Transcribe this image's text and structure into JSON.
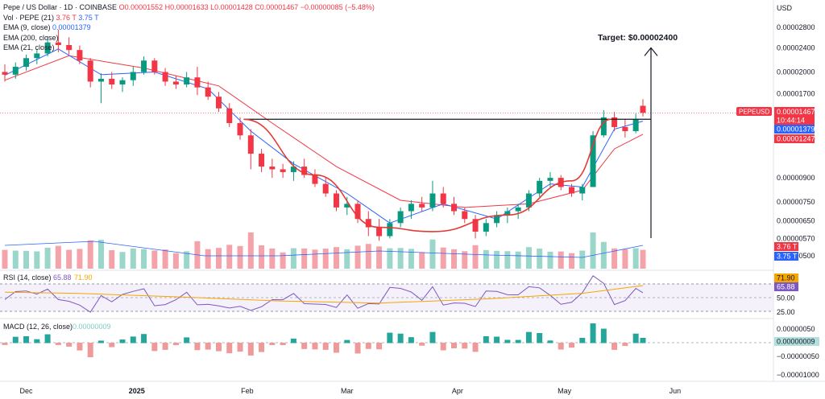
{
  "header": {
    "title": "Pepe / US Dollar · 1D · COINBASE",
    "ohlc": "O0.00001552  H0.00001633  L0.00001428  C0.00001467  −0.00000085 (−5.48%)",
    "vol_label": "Vol · PEPE (21)",
    "vol_a": "3.76 T",
    "vol_b": "3.75 T",
    "ema9_label": "EMA (9, close)",
    "ema9_value": "0.00001379",
    "ema200_label": "EMA (200, close)",
    "ema21_label": "EMA (21, close)"
  },
  "price_axis": {
    "currency": "USD",
    "ticks": [
      "0.00002800",
      "0.00002400",
      "0.00002000",
      "0.00001700",
      "0.00001200",
      "0.00000900",
      "0.00000750",
      "0.00000650",
      "0.00000570",
      "0.00000500"
    ],
    "last_symbol": "PEPEUSD",
    "last_price": "0.00001467",
    "countdown": "10:44:14",
    "ema9_tag": "0.00001379",
    "ema21_tag": "0.00001247",
    "vol_tag_a": "3.76 T",
    "vol_tag_b": "3.75 T"
  },
  "annotation": {
    "target_text": "Target: $0.00002400"
  },
  "rsi": {
    "label": "RSI (14, close)",
    "value": "65.88",
    "ma_value": "71.90",
    "ticks": [
      "75.00",
      "50.00",
      "25.00"
    ]
  },
  "macd": {
    "label": "MACD (12, 26, close)",
    "value": "0.00000009",
    "ticks": [
      "0.00000050",
      "0.00000000",
      "−0.00000050",
      "−0.00001000"
    ]
  },
  "time_axis": {
    "labels": [
      "Dec",
      "2025",
      "Feb",
      "Mar",
      "Apr",
      "May",
      "Jun"
    ]
  },
  "colors": {
    "up": "#089981",
    "down": "#f23645",
    "ema9": "#2962ff",
    "ema21": "#f23645",
    "rsi": "#7e57c2",
    "rsi_ma": "#f7a600"
  },
  "chart_data": {
    "type": "candlestick",
    "x_axis": "date",
    "price_scale": "log",
    "candles": [
      [
        "2024-11-25",
        2e-05,
        2.12e-05,
        1.86e-05,
        1.96e-05
      ],
      [
        "2024-11-28",
        1.96e-05,
        2.15e-05,
        1.9e-05,
        2.08e-05
      ],
      [
        "2024-12-01",
        2.08e-05,
        2.28e-05,
        2.02e-05,
        2.22e-05
      ],
      [
        "2024-12-04",
        2.22e-05,
        2.38e-05,
        2.12e-05,
        2.3e-05
      ],
      [
        "2024-12-07",
        2.3e-05,
        2.62e-05,
        2.25e-05,
        2.5e-05
      ],
      [
        "2024-12-10",
        2.5e-05,
        2.75e-05,
        2.32e-05,
        2.45e-05
      ],
      [
        "2024-12-13",
        2.45e-05,
        2.6e-05,
        2.28e-05,
        2.36e-05
      ],
      [
        "2024-12-16",
        2.36e-05,
        2.44e-05,
        2.12e-05,
        2.18e-05
      ],
      [
        "2024-12-19",
        2.18e-05,
        2.22e-05,
        1.78e-05,
        1.86e-05
      ],
      [
        "2024-12-22",
        1.86e-05,
        1.98e-05,
        1.58e-05,
        1.9e-05
      ],
      [
        "2024-12-25",
        1.9e-05,
        2e-05,
        1.76e-05,
        1.82e-05
      ],
      [
        "2024-12-28",
        1.82e-05,
        1.92e-05,
        1.72e-05,
        1.88e-05
      ],
      [
        "2024-12-31",
        1.88e-05,
        2.08e-05,
        1.8e-05,
        2e-05
      ],
      [
        "2025-01-03",
        2e-05,
        2.25e-05,
        1.96e-05,
        2.18e-05
      ],
      [
        "2025-01-06",
        2.18e-05,
        2.22e-05,
        1.96e-05,
        2e-05
      ],
      [
        "2025-01-09",
        2e-05,
        2.06e-05,
        1.8e-05,
        1.86e-05
      ],
      [
        "2025-01-12",
        1.86e-05,
        1.94e-05,
        1.76e-05,
        1.82e-05
      ],
      [
        "2025-01-15",
        1.82e-05,
        2e-05,
        1.78e-05,
        1.92e-05
      ],
      [
        "2025-01-18",
        1.92e-05,
        2.08e-05,
        1.68e-05,
        1.78e-05
      ],
      [
        "2025-01-21",
        1.78e-05,
        1.86e-05,
        1.62e-05,
        1.66e-05
      ],
      [
        "2025-01-24",
        1.66e-05,
        1.72e-05,
        1.48e-05,
        1.52e-05
      ],
      [
        "2025-01-27",
        1.52e-05,
        1.58e-05,
        1.32e-05,
        1.36e-05
      ],
      [
        "2025-01-30",
        1.36e-05,
        1.42e-05,
        1.2e-05,
        1.24e-05
      ],
      [
        "2025-02-02",
        1.24e-05,
        1.3e-05,
        9.6e-06,
        1.08e-05
      ],
      [
        "2025-02-05",
        1.08e-05,
        1.12e-05,
        9.4e-06,
        9.8e-06
      ],
      [
        "2025-02-08",
        9.8e-06,
        1.04e-05,
        9e-06,
        9.6e-06
      ],
      [
        "2025-02-11",
        9.6e-06,
        1e-05,
        9e-06,
        9.4e-06
      ],
      [
        "2025-02-14",
        9.4e-06,
        1.02e-05,
        8.8e-06,
        9.8e-06
      ],
      [
        "2025-02-17",
        9.8e-06,
        1.04e-05,
        9e-06,
        9.2e-06
      ],
      [
        "2025-02-20",
        9.2e-06,
        9.6e-06,
        8.4e-06,
        8.6e-06
      ],
      [
        "2025-02-23",
        8.6e-06,
        9e-06,
        7.8e-06,
        8e-06
      ],
      [
        "2025-02-26",
        8e-06,
        8.2e-06,
        7e-06,
        7.2e-06
      ],
      [
        "2025-03-01",
        7.2e-06,
        7.8e-06,
        6.8e-06,
        7.4e-06
      ],
      [
        "2025-03-04",
        7.4e-06,
        7.6e-06,
        6.4e-06,
        6.6e-06
      ],
      [
        "2025-03-07",
        6.6e-06,
        7e-06,
        5.8e-06,
        6.2e-06
      ],
      [
        "2025-03-10",
        6.2e-06,
        6.6e-06,
        5.6e-06,
        5.8e-06
      ],
      [
        "2025-03-13",
        5.8e-06,
        6.6e-06,
        5.7e-06,
        6.4e-06
      ],
      [
        "2025-03-16",
        6.4e-06,
        7.2e-06,
        6.2e-06,
        7e-06
      ],
      [
        "2025-03-19",
        7e-06,
        7.6e-06,
        6.6e-06,
        7.4e-06
      ],
      [
        "2025-03-22",
        7.4e-06,
        7.8e-06,
        7e-06,
        7.2e-06
      ],
      [
        "2025-03-25",
        7.2e-06,
        8.8e-06,
        7e-06,
        8e-06
      ],
      [
        "2025-03-28",
        8e-06,
        8.4e-06,
        7.2e-06,
        7.4e-06
      ],
      [
        "2025-03-31",
        7.4e-06,
        7.8e-06,
        6.8e-06,
        7e-06
      ],
      [
        "2025-04-03",
        7e-06,
        7.2e-06,
        6.4e-06,
        6.6e-06
      ],
      [
        "2025-04-06",
        6.6e-06,
        6.8e-06,
        5.7e-06,
        6e-06
      ],
      [
        "2025-04-09",
        6e-06,
        6.6e-06,
        5.8e-06,
        6.4e-06
      ],
      [
        "2025-04-12",
        6.4e-06,
        7e-06,
        6.2e-06,
        6.8e-06
      ],
      [
        "2025-04-15",
        6.8e-06,
        7.2e-06,
        6.4e-06,
        7e-06
      ],
      [
        "2025-04-18",
        7e-06,
        7.4e-06,
        6.6e-06,
        7.2e-06
      ],
      [
        "2025-04-21",
        7.2e-06,
        8.2e-06,
        7e-06,
        8e-06
      ],
      [
        "2025-04-24",
        8e-06,
        9e-06,
        7.8e-06,
        8.8e-06
      ],
      [
        "2025-04-27",
        8.8e-06,
        9.4e-06,
        8.4e-06,
        9e-06
      ],
      [
        "2025-04-30",
        9e-06,
        9.2e-06,
        8.2e-06,
        8.4e-06
      ],
      [
        "2025-05-03",
        8.4e-06,
        8.6e-06,
        7.8e-06,
        8e-06
      ],
      [
        "2025-05-06",
        8e-06,
        8.6e-06,
        7.6e-06,
        8.4e-06
      ],
      [
        "2025-05-09",
        8.4e-06,
        1.28e-05,
        8.4e-06,
        1.24e-05
      ],
      [
        "2025-05-12",
        1.24e-05,
        1.5e-05,
        1.22e-05,
        1.42e-05
      ],
      [
        "2025-05-15",
        1.42e-05,
        1.48e-05,
        1.28e-05,
        1.32e-05
      ],
      [
        "2025-05-18",
        1.32e-05,
        1.4e-05,
        1.22e-05,
        1.28e-05
      ],
      [
        "2025-05-21",
        1.28e-05,
        1.46e-05,
        1.26e-05,
        1.4e-05
      ],
      [
        "2025-05-23",
        1.55e-05,
        1.63e-05,
        1.43e-05,
        1.47e-05
      ]
    ],
    "ema9": [
      [
        "2024-11-25",
        1.95e-05
      ],
      [
        "2024-12-10",
        2.38e-05
      ],
      [
        "2024-12-22",
        1.96e-05
      ],
      [
        "2025-01-06",
        2e-05
      ],
      [
        "2025-01-21",
        1.76e-05
      ],
      [
        "2025-02-02",
        1.28e-05
      ],
      [
        "2025-02-14",
        1e-05
      ],
      [
        "2025-03-01",
        8e-06
      ],
      [
        "2025-03-13",
        6.4e-06
      ],
      [
        "2025-03-28",
        7.4e-06
      ],
      [
        "2025-04-12",
        6.6e-06
      ],
      [
        "2025-04-27",
        8.6e-06
      ],
      [
        "2025-05-06",
        8.4e-06
      ],
      [
        "2025-05-15",
        1.3e-05
      ],
      [
        "2025-05-23",
        1.38e-05
      ]
    ],
    "ema21": [
      [
        "2024-11-25",
        1.88e-05
      ],
      [
        "2024-12-13",
        2.26e-05
      ],
      [
        "2025-01-03",
        2.06e-05
      ],
      [
        "2025-01-24",
        1.8e-05
      ],
      [
        "2025-02-08",
        1.36e-05
      ],
      [
        "2025-02-26",
        9.8e-06
      ],
      [
        "2025-03-16",
        7.6e-06
      ],
      [
        "2025-04-03",
        7.2e-06
      ],
      [
        "2025-04-21",
        7.4e-06
      ],
      [
        "2025-05-06",
        8.2e-06
      ],
      [
        "2025-05-15",
        1.12e-05
      ],
      [
        "2025-05-23",
        1.25e-05
      ]
    ],
    "horizontal_level": 1.4e-05,
    "cup_curve": [
      [
        "2025-01-31",
        1.4e-05
      ],
      [
        "2025-02-20",
        9.2e-06
      ],
      [
        "2025-03-10",
        6.2e-06
      ],
      [
        "2025-03-25",
        6e-06
      ],
      [
        "2025-04-15",
        6.8e-06
      ],
      [
        "2025-05-03",
        8.8e-06
      ],
      [
        "2025-05-14",
        1.4e-05
      ]
    ],
    "target_price": 2.4e-05,
    "rsi_level_high": 75,
    "rsi_level_low": 25
  }
}
